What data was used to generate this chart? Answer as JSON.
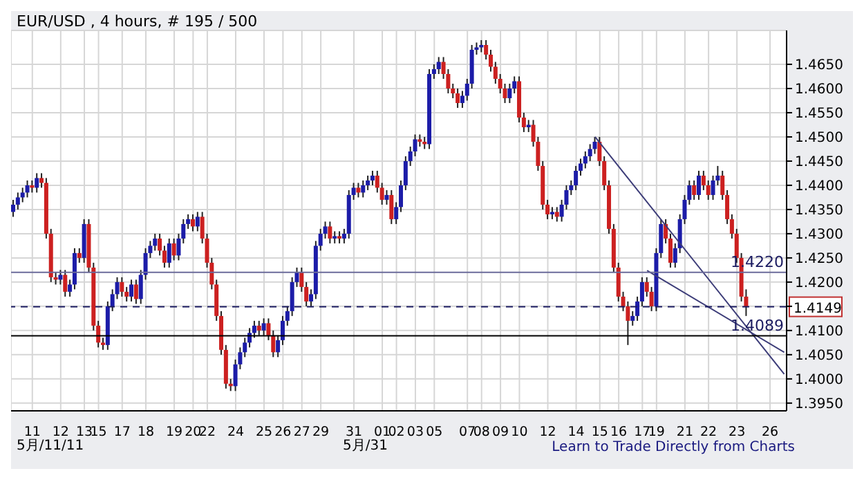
{
  "chart_data": {
    "type": "candlestick",
    "title": "EUR/USD , 4 hours, # 195 / 500",
    "categories": [
      null,
      null,
      null,
      null,
      "11",
      null,
      null,
      null,
      null,
      null,
      "12",
      null,
      null,
      null,
      null,
      "13",
      null,
      null,
      "15",
      null,
      null,
      null,
      null,
      "17",
      null,
      null,
      null,
      null,
      "18",
      null,
      null,
      null,
      null,
      null,
      "19",
      null,
      null,
      null,
      "20",
      null,
      null,
      "22",
      null,
      null,
      null,
      null,
      null,
      "24",
      null,
      null,
      null,
      null,
      null,
      "25",
      null,
      null,
      null,
      "26",
      null,
      null,
      null,
      "27",
      null,
      null,
      null,
      "29",
      null,
      null,
      null,
      null,
      null,
      null,
      "31",
      null,
      null,
      null,
      null,
      null,
      "01",
      null,
      null,
      "02",
      null,
      null,
      null,
      "03",
      null,
      null,
      null,
      "05",
      null,
      null,
      null,
      null,
      null,
      null,
      "07",
      null,
      null,
      "08",
      null,
      null,
      null,
      "09",
      null,
      null,
      null,
      "10",
      null,
      null,
      null,
      null,
      null,
      "12",
      null,
      null,
      null,
      null,
      null,
      "14",
      null,
      null,
      null,
      null,
      "15",
      null,
      null,
      null,
      "16",
      null,
      null,
      null,
      null,
      "17",
      null,
      null,
      "19",
      null,
      null,
      null,
      null,
      null,
      "21",
      null,
      null,
      null,
      null,
      "22",
      null,
      null,
      null,
      null,
      null,
      "23",
      null,
      null,
      null,
      null,
      null,
      null,
      "26",
      null,
      null,
      null
    ],
    "series": [
      {
        "type": "candlestick",
        "colors": [
          "#1c1ca8",
          "#1c1ca8",
          "#1c1ca8",
          "#1c1ca8",
          "#cc2020",
          "#1c1ca8",
          "#cc2020",
          "#cc2020",
          "#cc2020",
          "#cc2020",
          "#1c1ca8",
          "#cc2020",
          "#1c1ca8",
          "#1c1ca8",
          "#cc2020",
          "#1c1ca8",
          "#cc2020",
          "#cc2020",
          "#cc2020",
          "#cc2020",
          "#1c1ca8",
          "#1c1ca8",
          "#1c1ca8",
          "#cc2020",
          "#cc2020",
          "#1c1ca8",
          "#cc2020",
          "#1c1ca8",
          "#1c1ca8",
          "#1c1ca8",
          "#1c1ca8",
          "#cc2020",
          "#cc2020",
          "#1c1ca8",
          "#cc2020",
          "#1c1ca8",
          "#1c1ca8",
          "#1c1ca8",
          "#cc2020",
          "#1c1ca8",
          "#cc2020",
          "#cc2020",
          "#cc2020",
          "#cc2020",
          "#cc2020",
          "#cc2020",
          "#cc2020",
          "#1c1ca8",
          "#1c1ca8",
          "#1c1ca8",
          "#1c1ca8",
          "#1c1ca8",
          "#cc2020",
          "#1c1ca8",
          "#cc2020",
          "#cc2020",
          "#1c1ca8",
          "#1c1ca8",
          "#1c1ca8",
          "#1c1ca8",
          "#1c1ca8",
          "#cc2020",
          "#cc2020",
          "#1c1ca8",
          "#1c1ca8",
          "#1c1ca8",
          "#1c1ca8",
          "#cc2020",
          "#1c1ca8",
          "#cc2020",
          "#1c1ca8",
          "#1c1ca8",
          "#1c1ca8",
          "#cc2020",
          "#1c1ca8",
          "#1c1ca8",
          "#1c1ca8",
          "#cc2020",
          "#cc2020",
          "#1c1ca8",
          "#cc2020",
          "#1c1ca8",
          "#1c1ca8",
          "#1c1ca8",
          "#1c1ca8",
          "#1c1ca8",
          "#cc2020",
          "#cc2020",
          "#1c1ca8",
          "#1c1ca8",
          "#1c1ca8",
          "#cc2020",
          "#cc2020",
          "#cc2020",
          "#cc2020",
          "#1c1ca8",
          "#1c1ca8",
          "#1c1ca8",
          "#1c1ca8",
          "#1c1ca8",
          "#cc2020",
          "#cc2020",
          "#cc2020",
          "#cc2020",
          "#cc2020",
          "#1c1ca8",
          "#1c1ca8",
          "#cc2020",
          "#cc2020",
          "#1c1ca8",
          "#cc2020",
          "#cc2020",
          "#cc2020",
          "#cc2020",
          "#1c1ca8",
          "#cc2020",
          "#1c1ca8",
          "#1c1ca8",
          "#1c1ca8",
          "#1c1ca8",
          "#1c1ca8",
          "#1c1ca8",
          "#1c1ca8",
          "#1c1ca8",
          "#cc2020",
          "#cc2020",
          "#cc2020",
          "#cc2020",
          "#cc2020",
          "#cc2020",
          "#cc2020",
          "#1c1ca8",
          "#1c1ca8",
          "#1c1ca8",
          "#cc2020",
          "#cc2020",
          "#1c1ca8",
          "#1c1ca8",
          "#cc2020",
          "#cc2020",
          "#1c1ca8",
          "#1c1ca8",
          "#1c1ca8",
          "#1c1ca8",
          "#cc2020",
          "#1c1ca8",
          "#cc2020",
          "#cc2020",
          "#1c1ca8",
          "#1c1ca8",
          "#cc2020",
          "#cc2020",
          "#cc2020",
          "#cc2020",
          "#cc2020",
          "#cc2020",
          null,
          null,
          null,
          null,
          null,
          null,
          null,
          null
        ],
        "ohlc": [
          [
            1.4345,
            1.437,
            1.4335,
            1.436
          ],
          [
            1.436,
            1.4385,
            1.435,
            1.4375
          ],
          [
            1.4375,
            1.4395,
            1.4365,
            1.4385
          ],
          [
            1.4385,
            1.441,
            1.4375,
            1.44
          ],
          [
            1.44,
            1.441,
            1.4385,
            1.4395
          ],
          [
            1.4395,
            1.4425,
            1.4385,
            1.4415
          ],
          [
            1.4415,
            1.4425,
            1.4395,
            1.4405
          ],
          [
            1.4405,
            1.4415,
            1.429,
            1.43
          ],
          [
            1.43,
            1.431,
            1.42,
            1.421
          ],
          [
            1.421,
            1.422,
            1.4195,
            1.4205
          ],
          [
            1.4205,
            1.4225,
            1.4195,
            1.4215
          ],
          [
            1.4215,
            1.4225,
            1.417,
            1.418
          ],
          [
            1.418,
            1.4205,
            1.417,
            1.4195
          ],
          [
            1.4195,
            1.427,
            1.4185,
            1.426
          ],
          [
            1.426,
            1.427,
            1.424,
            1.425
          ],
          [
            1.425,
            1.433,
            1.424,
            1.432
          ],
          [
            1.432,
            1.433,
            1.422,
            1.423
          ],
          [
            1.423,
            1.424,
            1.41,
            1.411
          ],
          [
            1.411,
            1.412,
            1.4065,
            1.4075
          ],
          [
            1.4075,
            1.4085,
            1.406,
            1.407
          ],
          [
            1.407,
            1.416,
            1.406,
            1.415
          ],
          [
            1.415,
            1.4185,
            1.414,
            1.4175
          ],
          [
            1.4175,
            1.421,
            1.4165,
            1.42
          ],
          [
            1.42,
            1.421,
            1.417,
            1.418
          ],
          [
            1.418,
            1.419,
            1.416,
            1.417
          ],
          [
            1.417,
            1.4205,
            1.416,
            1.4195
          ],
          [
            1.4195,
            1.4205,
            1.4155,
            1.4165
          ],
          [
            1.4165,
            1.4225,
            1.4155,
            1.4215
          ],
          [
            1.4215,
            1.427,
            1.4205,
            1.426
          ],
          [
            1.426,
            1.4285,
            1.425,
            1.4275
          ],
          [
            1.4275,
            1.43,
            1.4265,
            1.429
          ],
          [
            1.429,
            1.43,
            1.4255,
            1.4265
          ],
          [
            1.4265,
            1.4275,
            1.423,
            1.424
          ],
          [
            1.424,
            1.429,
            1.423,
            1.428
          ],
          [
            1.428,
            1.429,
            1.4245,
            1.4255
          ],
          [
            1.4255,
            1.43,
            1.4245,
            1.429
          ],
          [
            1.429,
            1.433,
            1.428,
            1.432
          ],
          [
            1.432,
            1.434,
            1.431,
            1.433
          ],
          [
            1.433,
            1.434,
            1.4305,
            1.4315
          ],
          [
            1.4315,
            1.4345,
            1.4305,
            1.4335
          ],
          [
            1.4335,
            1.4345,
            1.428,
            1.429
          ],
          [
            1.429,
            1.43,
            1.423,
            1.424
          ],
          [
            1.424,
            1.425,
            1.4185,
            1.4195
          ],
          [
            1.4195,
            1.4205,
            1.412,
            1.413
          ],
          [
            1.413,
            1.414,
            1.405,
            1.406
          ],
          [
            1.406,
            1.407,
            1.398,
            1.399
          ],
          [
            1.399,
            1.4,
            1.3975,
            1.3985
          ],
          [
            1.3985,
            1.404,
            1.3975,
            1.403
          ],
          [
            1.403,
            1.4065,
            1.402,
            1.4055
          ],
          [
            1.4055,
            1.4085,
            1.4045,
            1.4075
          ],
          [
            1.4075,
            1.4105,
            1.4065,
            1.4095
          ],
          [
            1.4095,
            1.412,
            1.4085,
            1.411
          ],
          [
            1.411,
            1.412,
            1.409,
            1.41
          ],
          [
            1.41,
            1.4125,
            1.409,
            1.4115
          ],
          [
            1.4115,
            1.4125,
            1.408,
            1.409
          ],
          [
            1.409,
            1.41,
            1.4045,
            1.4055
          ],
          [
            1.4055,
            1.409,
            1.4045,
            1.408
          ],
          [
            1.408,
            1.413,
            1.407,
            1.412
          ],
          [
            1.412,
            1.415,
            1.411,
            1.414
          ],
          [
            1.414,
            1.421,
            1.413,
            1.42
          ],
          [
            1.42,
            1.423,
            1.419,
            1.422
          ],
          [
            1.422,
            1.423,
            1.418,
            1.419
          ],
          [
            1.419,
            1.42,
            1.415,
            1.416
          ],
          [
            1.416,
            1.4185,
            1.415,
            1.4175
          ],
          [
            1.4175,
            1.4285,
            1.4165,
            1.4275
          ],
          [
            1.4275,
            1.431,
            1.4265,
            1.43
          ],
          [
            1.43,
            1.4325,
            1.429,
            1.4315
          ],
          [
            1.4315,
            1.4325,
            1.428,
            1.429
          ],
          [
            1.429,
            1.4305,
            1.428,
            1.4295
          ],
          [
            1.4295,
            1.4305,
            1.428,
            1.429
          ],
          [
            1.429,
            1.431,
            1.428,
            1.43
          ],
          [
            1.43,
            1.439,
            1.429,
            1.438
          ],
          [
            1.438,
            1.4405,
            1.437,
            1.4395
          ],
          [
            1.4395,
            1.4405,
            1.4375,
            1.4385
          ],
          [
            1.4385,
            1.441,
            1.4375,
            1.44
          ],
          [
            1.44,
            1.442,
            1.439,
            1.441
          ],
          [
            1.441,
            1.443,
            1.44,
            1.442
          ],
          [
            1.442,
            1.443,
            1.4385,
            1.4395
          ],
          [
            1.4395,
            1.4405,
            1.436,
            1.437
          ],
          [
            1.437,
            1.439,
            1.436,
            1.438
          ],
          [
            1.438,
            1.439,
            1.432,
            1.433
          ],
          [
            1.433,
            1.4365,
            1.432,
            1.4355
          ],
          [
            1.4355,
            1.441,
            1.4345,
            1.44
          ],
          [
            1.44,
            1.446,
            1.439,
            1.445
          ],
          [
            1.445,
            1.448,
            1.444,
            1.447
          ],
          [
            1.447,
            1.4505,
            1.446,
            1.4495
          ],
          [
            1.4495,
            1.4505,
            1.448,
            1.449
          ],
          [
            1.449,
            1.45,
            1.4475,
            1.4485
          ],
          [
            1.4485,
            1.464,
            1.4475,
            1.463
          ],
          [
            1.463,
            1.465,
            1.462,
            1.464
          ],
          [
            1.464,
            1.4665,
            1.463,
            1.4655
          ],
          [
            1.4655,
            1.4665,
            1.462,
            1.463
          ],
          [
            1.463,
            1.464,
            1.459,
            1.46
          ],
          [
            1.46,
            1.461,
            1.458,
            1.459
          ],
          [
            1.459,
            1.46,
            1.456,
            1.457
          ],
          [
            1.457,
            1.4595,
            1.456,
            1.4585
          ],
          [
            1.4585,
            1.462,
            1.4575,
            1.461
          ],
          [
            1.461,
            1.469,
            1.46,
            1.468
          ],
          [
            1.468,
            1.4695,
            1.467,
            1.4685
          ],
          [
            1.4685,
            1.47,
            1.4675,
            1.469
          ],
          [
            1.469,
            1.47,
            1.466,
            1.467
          ],
          [
            1.467,
            1.468,
            1.4635,
            1.4645
          ],
          [
            1.4645,
            1.4655,
            1.461,
            1.462
          ],
          [
            1.462,
            1.463,
            1.459,
            1.46
          ],
          [
            1.46,
            1.461,
            1.457,
            1.458
          ],
          [
            1.458,
            1.461,
            1.457,
            1.46
          ],
          [
            1.46,
            1.4625,
            1.459,
            1.4615
          ],
          [
            1.4615,
            1.4625,
            1.453,
            1.454
          ],
          [
            1.454,
            1.455,
            1.451,
            1.452
          ],
          [
            1.452,
            1.4535,
            1.451,
            1.4525
          ],
          [
            1.4525,
            1.4535,
            1.448,
            1.449
          ],
          [
            1.449,
            1.45,
            1.443,
            1.444
          ],
          [
            1.444,
            1.445,
            1.435,
            1.436
          ],
          [
            1.436,
            1.437,
            1.433,
            1.434
          ],
          [
            1.434,
            1.4355,
            1.433,
            1.4345
          ],
          [
            1.4345,
            1.4355,
            1.4325,
            1.4335
          ],
          [
            1.4335,
            1.437,
            1.4325,
            1.436
          ],
          [
            1.436,
            1.44,
            1.435,
            1.439
          ],
          [
            1.439,
            1.441,
            1.438,
            1.44
          ],
          [
            1.44,
            1.444,
            1.439,
            1.443
          ],
          [
            1.443,
            1.4455,
            1.442,
            1.4445
          ],
          [
            1.4445,
            1.447,
            1.4435,
            1.446
          ],
          [
            1.446,
            1.4485,
            1.445,
            1.4475
          ],
          [
            1.4475,
            1.45,
            1.4465,
            1.449
          ],
          [
            1.449,
            1.45,
            1.444,
            1.445
          ],
          [
            1.445,
            1.446,
            1.439,
            1.44
          ],
          [
            1.44,
            1.441,
            1.43,
            1.431
          ],
          [
            1.431,
            1.432,
            1.422,
            1.423
          ],
          [
            1.423,
            1.424,
            1.416,
            1.417
          ],
          [
            1.417,
            1.418,
            1.414,
            1.415
          ],
          [
            1.415,
            1.416,
            1.407,
            1.412
          ],
          [
            1.412,
            1.414,
            1.411,
            1.413
          ],
          [
            1.413,
            1.417,
            1.412,
            1.416
          ],
          [
            1.416,
            1.421,
            1.415,
            1.42
          ],
          [
            1.42,
            1.421,
            1.417,
            1.418
          ],
          [
            1.418,
            1.419,
            1.414,
            1.415
          ],
          [
            1.415,
            1.427,
            1.414,
            1.426
          ],
          [
            1.426,
            1.433,
            1.425,
            1.432
          ],
          [
            1.432,
            1.433,
            1.428,
            1.429
          ],
          [
            1.429,
            1.43,
            1.423,
            1.424
          ],
          [
            1.424,
            1.428,
            1.423,
            1.427
          ],
          [
            1.427,
            1.434,
            1.426,
            1.433
          ],
          [
            1.433,
            1.438,
            1.432,
            1.437
          ],
          [
            1.437,
            1.441,
            1.436,
            1.44
          ],
          [
            1.44,
            1.441,
            1.437,
            1.438
          ],
          [
            1.438,
            1.443,
            1.437,
            1.442
          ],
          [
            1.442,
            1.443,
            1.439,
            1.44
          ],
          [
            1.44,
            1.441,
            1.437,
            1.438
          ],
          [
            1.438,
            1.442,
            1.437,
            1.441
          ],
          [
            1.441,
            1.444,
            1.44,
            1.442
          ],
          [
            1.442,
            1.443,
            1.437,
            1.438
          ],
          [
            1.438,
            1.439,
            1.432,
            1.433
          ],
          [
            1.433,
            1.434,
            1.429,
            1.43
          ],
          [
            1.43,
            1.431,
            1.424,
            1.425
          ],
          [
            1.425,
            1.426,
            1.416,
            1.417
          ],
          [
            1.417,
            1.4185,
            1.413,
            1.4149
          ],
          null,
          null,
          null,
          null,
          null,
          null,
          null,
          null
        ]
      },
      {
        "type": "line",
        "color": "#3c3c78",
        "values": [
          null,
          null,
          null,
          null,
          null,
          null,
          null,
          null,
          null,
          null,
          null,
          null,
          null,
          null,
          null,
          null,
          null,
          null,
          null,
          null,
          null,
          null,
          null,
          null,
          null,
          null,
          null,
          null,
          null,
          null,
          null,
          null,
          null,
          null,
          null,
          null,
          null,
          null,
          null,
          null,
          null,
          null,
          null,
          null,
          null,
          null,
          null,
          null,
          null,
          null,
          null,
          null,
          null,
          null,
          null,
          null,
          null,
          null,
          null,
          null,
          null,
          null,
          null,
          null,
          null,
          null,
          null,
          null,
          null,
          null,
          null,
          null,
          null,
          null,
          null,
          null,
          null,
          null,
          null,
          null,
          null,
          null,
          null,
          null,
          null,
          null,
          null,
          null,
          null,
          null,
          null,
          null,
          null,
          null,
          null,
          null,
          null,
          null,
          null,
          null,
          null,
          null,
          null,
          null,
          null,
          null,
          null,
          null,
          null,
          null,
          null,
          null,
          null,
          null,
          null,
          null,
          null,
          null,
          null,
          null,
          null,
          null,
          null,
          1.45,
          null,
          null,
          null,
          null,
          null,
          null,
          null,
          null,
          null,
          null,
          null,
          null,
          null,
          null,
          null,
          null,
          null,
          null,
          null,
          null,
          null,
          null,
          null,
          null,
          null,
          null,
          null,
          null,
          null,
          null,
          null,
          null,
          null,
          null,
          null,
          null,
          null,
          null,
          null,
          1.401
        ]
      },
      {
        "type": "line",
        "color": "#3c3c78",
        "values": [
          null,
          null,
          null,
          null,
          null,
          null,
          null,
          null,
          null,
          null,
          null,
          null,
          null,
          null,
          null,
          null,
          null,
          null,
          null,
          null,
          null,
          null,
          null,
          null,
          null,
          null,
          null,
          null,
          null,
          null,
          null,
          null,
          null,
          null,
          null,
          null,
          null,
          null,
          null,
          null,
          null,
          null,
          null,
          null,
          null,
          null,
          null,
          null,
          null,
          null,
          null,
          null,
          null,
          null,
          null,
          null,
          null,
          null,
          null,
          null,
          null,
          null,
          null,
          null,
          null,
          null,
          null,
          null,
          null,
          null,
          null,
          null,
          null,
          null,
          null,
          null,
          null,
          null,
          null,
          null,
          null,
          null,
          null,
          null,
          null,
          null,
          null,
          null,
          null,
          null,
          null,
          null,
          null,
          null,
          null,
          null,
          null,
          null,
          null,
          null,
          null,
          null,
          null,
          null,
          null,
          null,
          null,
          null,
          null,
          null,
          null,
          null,
          null,
          null,
          null,
          null,
          null,
          null,
          null,
          null,
          null,
          null,
          null,
          null,
          null,
          null,
          null,
          null,
          null,
          null,
          null,
          null,
          null,
          null,
          1.4224,
          null,
          null,
          null,
          null,
          null,
          null,
          null,
          null,
          null,
          null,
          null,
          null,
          null,
          null,
          null,
          null,
          null,
          null,
          null,
          null,
          null,
          null,
          null,
          null,
          null,
          null,
          null,
          null,
          1.4055
        ]
      }
    ],
    "ylim": [
      1.3934,
      1.472
    ],
    "yticks": [
      {
        "value": 1.395,
        "label": "1.3950"
      },
      {
        "value": 1.4,
        "label": "1.4000"
      },
      {
        "value": 1.405,
        "label": "1.4050"
      },
      {
        "value": 1.41,
        "label": "1.4100"
      },
      {
        "value": 1.415,
        "label": null
      },
      {
        "value": 1.42,
        "label": "1.4200"
      },
      {
        "value": 1.425,
        "label": "1.4250"
      },
      {
        "value": 1.43,
        "label": "1.4300"
      },
      {
        "value": 1.435,
        "label": "1.4350"
      },
      {
        "value": 1.44,
        "label": "1.4400"
      },
      {
        "value": 1.445,
        "label": "1.4450"
      },
      {
        "value": 1.45,
        "label": "1.4500"
      },
      {
        "value": 1.455,
        "label": "1.4550"
      },
      {
        "value": 1.46,
        "label": "1.4600"
      },
      {
        "value": 1.465,
        "label": "1.4650"
      }
    ],
    "ref_lines": [
      {
        "axis": "y",
        "value": 1.422,
        "label": "1.4220",
        "color": "#6b6b9a"
      },
      {
        "axis": "y",
        "value": 1.4149,
        "label": "1.4149",
        "color": "#1a1a60",
        "line_style": "dashed"
      },
      {
        "axis": "y",
        "value": 1.4089,
        "label": "1.4089",
        "color": "#000000"
      }
    ],
    "annotations": [
      "5月/11/11",
      "5月/31",
      "Learn to Trade Directly from Charts"
    ],
    "grid": true
  }
}
